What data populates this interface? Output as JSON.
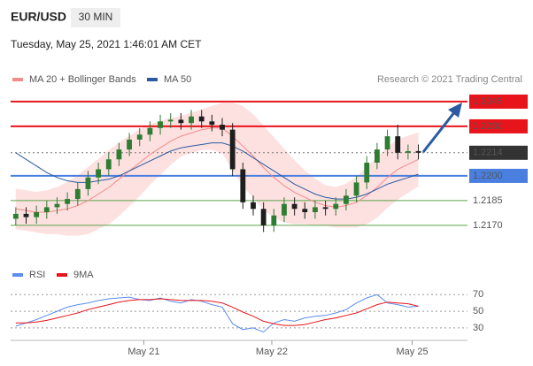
{
  "header": {
    "symbol": "EUR/USD",
    "timeframe": "30 MIN",
    "date": "Tuesday, May 25, 2021 1:46:01 AM CET",
    "credit": "Research © 2021 Trading Central"
  },
  "chart_data": [
    {
      "type": "candlestick",
      "xlim": [
        -0.5,
        43.5
      ],
      "ylim": [
        1.2148,
        1.2253
      ],
      "up_color": "#2e7d32",
      "down_color": "#1e1e1e",
      "candles": {
        "open": [
          1.2174,
          1.2177,
          1.2175,
          1.2178,
          1.2181,
          1.2183,
          1.2186,
          1.2192,
          1.2199,
          1.2204,
          1.221,
          1.2216,
          1.2222,
          1.2225,
          1.2229,
          1.2233,
          1.2234,
          1.2232,
          1.2236,
          1.2233,
          1.2231,
          1.2228,
          1.2204,
          1.2184,
          1.218,
          1.217,
          1.2176,
          1.2183,
          1.218,
          1.2178,
          1.2181,
          1.218,
          1.2183,
          1.2188,
          1.2196,
          1.2208,
          1.2216,
          1.2224,
          1.2214,
          1.2215
        ],
        "high": [
          1.2181,
          1.2181,
          1.2182,
          1.2185,
          1.2187,
          1.219,
          1.2196,
          1.2203,
          1.2208,
          1.2214,
          1.222,
          1.2226,
          1.2229,
          1.2233,
          1.2237,
          1.2238,
          1.2238,
          1.224,
          1.224,
          1.2237,
          1.2235,
          1.2232,
          1.2208,
          1.2188,
          1.2184,
          1.218,
          1.2187,
          1.2187,
          1.2184,
          1.2185,
          1.2185,
          1.2187,
          1.2192,
          1.22,
          1.2212,
          1.222,
          1.2228,
          1.2231,
          1.2219,
          1.2219
        ],
        "low": [
          1.217,
          1.2171,
          1.2171,
          1.2174,
          1.2177,
          1.2179,
          1.2182,
          1.2188,
          1.2195,
          1.22,
          1.2206,
          1.2212,
          1.2218,
          1.2221,
          1.2225,
          1.2229,
          1.2228,
          1.2228,
          1.2229,
          1.2227,
          1.2224,
          1.22,
          1.218,
          1.2176,
          1.2166,
          1.2166,
          1.2172,
          1.2176,
          1.2174,
          1.2174,
          1.2176,
          1.2176,
          1.2179,
          1.2184,
          1.2192,
          1.2204,
          1.2212,
          1.221,
          1.221,
          1.221
        ],
        "close": [
          1.2177,
          1.2175,
          1.2178,
          1.2181,
          1.2183,
          1.2186,
          1.2192,
          1.2199,
          1.2204,
          1.221,
          1.2216,
          1.2222,
          1.2225,
          1.2229,
          1.2233,
          1.2234,
          1.2232,
          1.2236,
          1.2233,
          1.2231,
          1.2228,
          1.2204,
          1.2184,
          1.218,
          1.217,
          1.2176,
          1.2183,
          1.218,
          1.2178,
          1.2181,
          1.218,
          1.2183,
          1.2188,
          1.2196,
          1.2208,
          1.2216,
          1.2224,
          1.2214,
          1.2215,
          1.2214
        ]
      },
      "series": [
        {
          "name": "MA 20 + Bollinger Bands",
          "color": "#f28b8b",
          "band_color": "#fde0e0",
          "values": [
            1.218,
            1.2179,
            1.2178,
            1.2178,
            1.2179,
            1.218,
            1.2182,
            1.2185,
            1.2189,
            1.2193,
            1.2198,
            1.2203,
            1.2208,
            1.2213,
            1.2217,
            1.2221,
            1.2224,
            1.2226,
            1.2228,
            1.2229,
            1.2229,
            1.2224,
            1.2218,
            1.2212,
            1.2205,
            1.2199,
            1.2194,
            1.219,
            1.2187,
            1.2184,
            1.2182,
            1.2181,
            1.2182,
            1.2184,
            1.2188,
            1.2193,
            1.2199,
            1.2204,
            1.2207,
            1.221
          ],
          "upper": [
            1.2192,
            1.2191,
            1.219,
            1.2191,
            1.2193,
            1.2196,
            1.22,
            1.2205,
            1.221,
            1.2215,
            1.222,
            1.2224,
            1.2228,
            1.2231,
            1.2233,
            1.2235,
            1.2236,
            1.2238,
            1.224,
            1.2242,
            1.2244,
            1.2244,
            1.2242,
            1.2237,
            1.223,
            1.2223,
            1.2216,
            1.2209,
            1.2203,
            1.2198,
            1.2194,
            1.2193,
            1.2195,
            1.2199,
            1.2205,
            1.2211,
            1.2217,
            1.2222,
            1.2224,
            1.2226
          ],
          "lower": [
            1.2168,
            1.2167,
            1.2166,
            1.2165,
            1.2165,
            1.2164,
            1.2164,
            1.2165,
            1.2168,
            1.2171,
            1.2176,
            1.2182,
            1.2188,
            1.2195,
            1.2201,
            1.2207,
            1.2212,
            1.2214,
            1.2216,
            1.2216,
            1.2214,
            1.2204,
            1.2194,
            1.2187,
            1.218,
            1.2175,
            1.2172,
            1.2171,
            1.2171,
            1.217,
            1.217,
            1.2169,
            1.2169,
            1.2169,
            1.2171,
            1.2175,
            1.2181,
            1.2186,
            1.219,
            1.2194
          ]
        },
        {
          "name": "MA 50",
          "color": "#2c5aa0",
          "values": [
            1.2214,
            1.221,
            1.2206,
            1.2202,
            1.2199,
            1.2197,
            1.2196,
            1.2196,
            1.2197,
            1.2198,
            1.22,
            1.2203,
            1.2206,
            1.2209,
            1.2212,
            1.2215,
            1.2217,
            1.2218,
            1.2219,
            1.222,
            1.222,
            1.2218,
            1.2215,
            1.2211,
            1.2207,
            1.2203,
            1.2199,
            1.2195,
            1.2192,
            1.2189,
            1.2187,
            1.2186,
            1.2186,
            1.2187,
            1.2189,
            1.2192,
            1.2195,
            1.2197,
            1.2199,
            1.2201
          ]
        }
      ],
      "levels": [
        {
          "value": 1.2245,
          "label": "1.2245",
          "color": "#e8141b",
          "box": true
        },
        {
          "value": 1.223,
          "label": "1.2230",
          "color": "#e8141b",
          "box": true
        },
        {
          "value": 1.2214,
          "label": "1.2214",
          "color": "#333333",
          "box": true,
          "dotted": true
        },
        {
          "value": 1.22,
          "label": "1.2200",
          "color": "#4a7fe0",
          "box": true
        },
        {
          "value": 1.2185,
          "label": "1.2185",
          "color": "#5aa34a",
          "box": false
        },
        {
          "value": 1.217,
          "label": "1.2170",
          "color": "#5aa34a",
          "box": false
        }
      ]
    },
    {
      "type": "line",
      "xlim": [
        -0.5,
        43.5
      ],
      "ylim": [
        15,
        82
      ],
      "yticks": [
        30,
        50,
        70
      ],
      "xticks": [
        {
          "value": 12.4,
          "label": "May 21"
        },
        {
          "value": 24.8,
          "label": "May 22"
        },
        {
          "value": 38.4,
          "label": "May 25"
        }
      ],
      "series": [
        {
          "name": "RSI",
          "color": "#5b8def",
          "values": [
            32,
            36,
            40,
            45,
            50,
            55,
            58,
            60,
            63,
            65,
            66,
            67,
            64,
            63,
            66,
            62,
            60,
            64,
            62,
            58,
            55,
            35,
            28,
            30,
            25,
            36,
            40,
            38,
            42,
            44,
            45,
            48,
            52,
            60,
            66,
            70,
            60,
            58,
            55,
            56
          ]
        },
        {
          "name": "9MA",
          "color": "#e8141b",
          "values": [
            36,
            36,
            37,
            39,
            42,
            45,
            48,
            52,
            55,
            58,
            61,
            63,
            64,
            64,
            65,
            64,
            63,
            63,
            63,
            62,
            60,
            55,
            49,
            44,
            38,
            35,
            33,
            33,
            34,
            37,
            40,
            42,
            45,
            48,
            53,
            58,
            61,
            60,
            59,
            56
          ]
        }
      ]
    }
  ]
}
